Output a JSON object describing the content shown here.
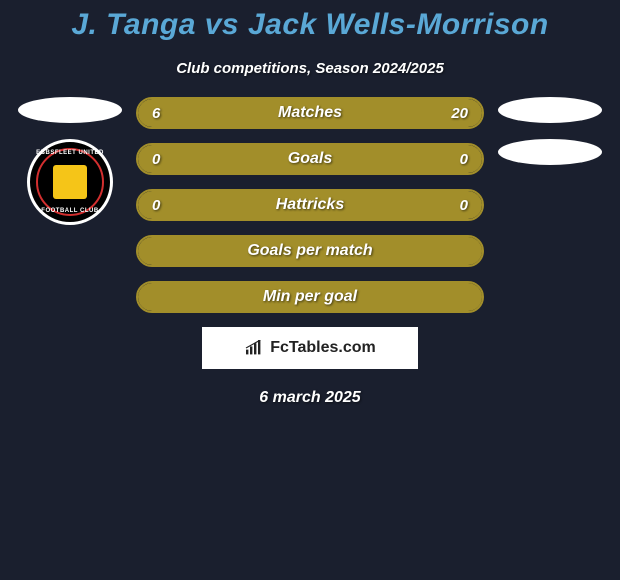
{
  "title": "J. Tanga vs Jack Wells-Morrison",
  "subtitle": "Club competitions, Season 2024/2025",
  "date": "6 march 2025",
  "attribution": "FcTables.com",
  "colors": {
    "background": "#1a1f2e",
    "title_color": "#5aa8d6",
    "bar_fill": "#a28e2a",
    "bar_border": "#a28e2a",
    "text": "#ffffff"
  },
  "club_left": {
    "name": "Ebbsfleet United",
    "top_text": "EBBSFLEET UNITED",
    "bottom_text": "FOOTBALL CLUB"
  },
  "bars": [
    {
      "label": "Matches",
      "left_value": "6",
      "right_value": "20",
      "left_pct": 23,
      "right_pct": 77,
      "show_values": true
    },
    {
      "label": "Goals",
      "left_value": "0",
      "right_value": "0",
      "left_pct": 50,
      "right_pct": 50,
      "show_values": true
    },
    {
      "label": "Hattricks",
      "left_value": "0",
      "right_value": "0",
      "left_pct": 50,
      "right_pct": 50,
      "show_values": true
    },
    {
      "label": "Goals per match",
      "left_value": "",
      "right_value": "",
      "left_pct": 100,
      "right_pct": 0,
      "show_values": false
    },
    {
      "label": "Min per goal",
      "left_value": "",
      "right_value": "",
      "left_pct": 100,
      "right_pct": 0,
      "show_values": false
    }
  ]
}
